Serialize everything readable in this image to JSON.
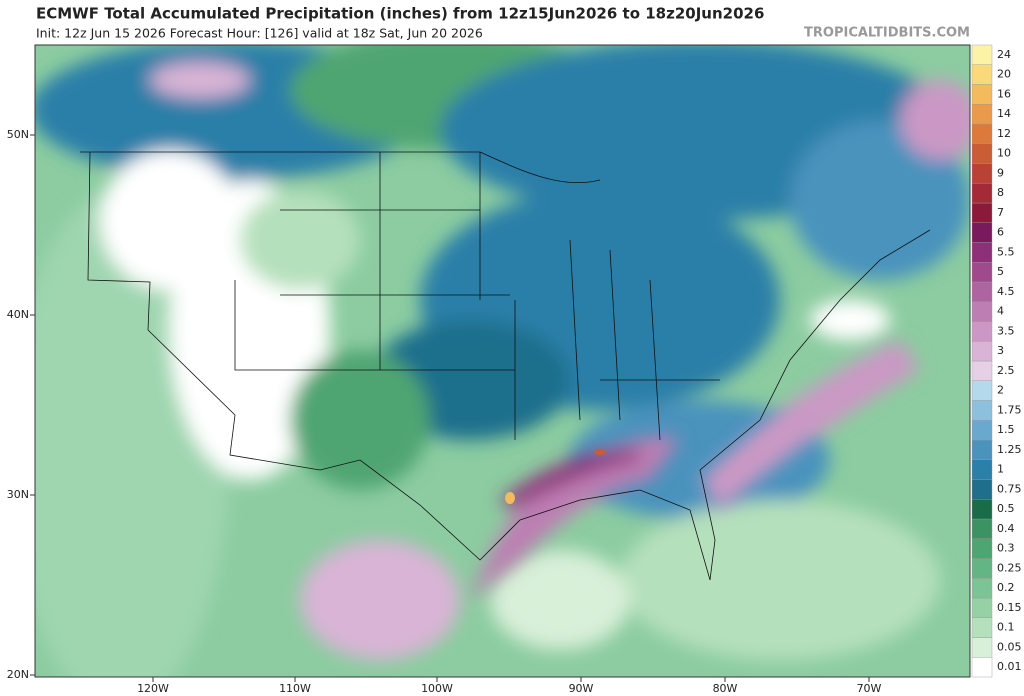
{
  "header": {
    "title": "ECMWF Total Accumulated Precipitation (inches) from 12z15Jun2026 to 18z20Jun2026",
    "subtitle": "Init: 12z Jun 15 2026   Forecast Hour: [126]   valid at 18z Sat, Jun 20 2026",
    "watermark": "TROPICALTIDBITS.COM"
  },
  "map": {
    "lat_labels": [
      "50N",
      "40N",
      "30N",
      "20N"
    ],
    "lon_labels": [
      "120W",
      "110W",
      "100W",
      "90W",
      "80W",
      "70W"
    ]
  },
  "legend": {
    "levels": [
      {
        "value": 0.01,
        "color": "#ffffff"
      },
      {
        "value": 0.05,
        "color": "#d8efd8"
      },
      {
        "value": 0.1,
        "color": "#b5e0bc"
      },
      {
        "value": 0.15,
        "color": "#96d1a5"
      },
      {
        "value": 0.2,
        "color": "#7cc495"
      },
      {
        "value": 0.25,
        "color": "#63b583"
      },
      {
        "value": 0.3,
        "color": "#4fa571"
      },
      {
        "value": 0.4,
        "color": "#3b9363"
      },
      {
        "value": 0.5,
        "color": "#1a6b48"
      },
      {
        "value": 0.75,
        "color": "#1f6f8c"
      },
      {
        "value": 1,
        "color": "#2b7fa8"
      },
      {
        "value": 1.25,
        "color": "#4a93bd"
      },
      {
        "value": 1.5,
        "color": "#6aa9cf"
      },
      {
        "value": 1.75,
        "color": "#8cc0dd"
      },
      {
        "value": 2,
        "color": "#b4d8ec"
      },
      {
        "value": 2.5,
        "color": "#e6d0e6"
      },
      {
        "value": 3,
        "color": "#d9b4d6"
      },
      {
        "value": 3.5,
        "color": "#cb98c5"
      },
      {
        "value": 4,
        "color": "#bd7eb3"
      },
      {
        "value": 4.5,
        "color": "#ae64a1"
      },
      {
        "value": 5,
        "color": "#9e4a8d"
      },
      {
        "value": 5.5,
        "color": "#8e3079"
      },
      {
        "value": 6,
        "color": "#7a1a5e"
      },
      {
        "value": 7,
        "color": "#8b1a3a"
      },
      {
        "value": 8,
        "color": "#a32b37"
      },
      {
        "value": 9,
        "color": "#b84236"
      },
      {
        "value": 10,
        "color": "#ca5c36"
      },
      {
        "value": 12,
        "color": "#dc7a3c"
      },
      {
        "value": 14,
        "color": "#e99a4a"
      },
      {
        "value": 16,
        "color": "#f4bb5e"
      },
      {
        "value": 20,
        "color": "#f9d97a"
      },
      {
        "value": 24,
        "color": "#fdf3a6"
      }
    ]
  }
}
